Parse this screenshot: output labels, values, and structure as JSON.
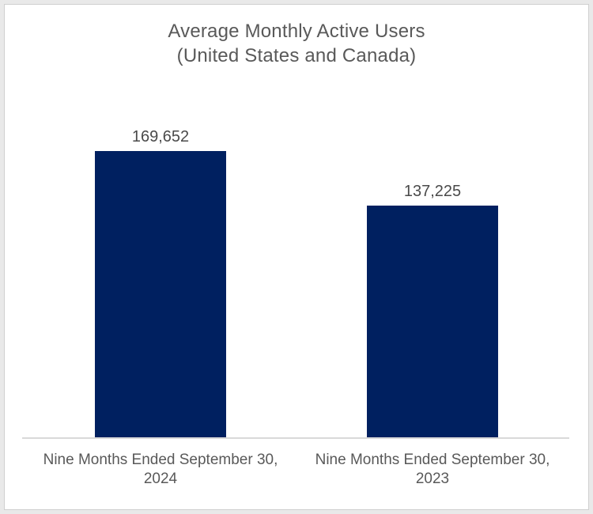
{
  "chart_data": {
    "type": "bar",
    "title": "Average Monthly Active Users",
    "subtitle": "(United States and Canada)",
    "categories": [
      "Nine Months Ended September 30, 2024",
      "Nine Months Ended September 30, 2023"
    ],
    "values": [
      169652,
      137225
    ],
    "value_labels": [
      "169,652",
      "137,225"
    ],
    "xlabel": "",
    "ylabel": "",
    "ylim": [
      0,
      180000
    ],
    "grid": false,
    "legend": false,
    "bar_color": "#002060",
    "title_color": "#595959",
    "value_label_color": "#4a4a4a",
    "category_label_color": "#595959",
    "axis_line_color": "#d9d9d9"
  }
}
